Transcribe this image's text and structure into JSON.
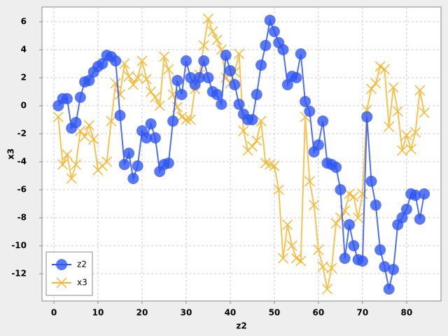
{
  "chart_data": {
    "type": "line",
    "xlabel": "z2",
    "ylabel": "x3",
    "x": [
      1,
      2,
      3,
      4,
      5,
      6,
      7,
      8,
      9,
      10,
      11,
      12,
      13,
      14,
      15,
      16,
      17,
      18,
      19,
      20,
      21,
      22,
      23,
      24,
      25,
      26,
      27,
      28,
      29,
      30,
      31,
      32,
      33,
      34,
      35,
      36,
      37,
      38,
      39,
      40,
      41,
      42,
      43,
      44,
      45,
      46,
      47,
      48,
      49,
      50,
      51,
      52,
      53,
      54,
      55,
      56,
      57,
      58,
      59,
      60,
      61,
      62,
      63,
      64,
      65,
      66,
      67,
      68,
      69,
      70,
      71,
      72,
      73,
      74,
      75,
      76,
      77,
      78,
      79,
      80,
      81,
      82,
      83,
      84
    ],
    "series": [
      {
        "name": "z2",
        "color": "#2f56f0",
        "marker": "circle",
        "values": [
          0,
          0.5,
          0.5,
          -1.6,
          -1.2,
          0.6,
          1.7,
          1.8,
          2.4,
          2.8,
          3.0,
          3.6,
          3.5,
          3.2,
          -0.7,
          -4.2,
          -3.4,
          -5.2,
          -4.3,
          -1.8,
          -2.3,
          -1.3,
          -2.3,
          -4.7,
          -4.2,
          -4.1,
          -1.1,
          1.8,
          0.8,
          3.2,
          2.0,
          1.5,
          2.0,
          3.2,
          2.0,
          1.0,
          0.8,
          0.1,
          3.6,
          2.5,
          1.5,
          0.1,
          -0.6,
          -1.0,
          -1.0,
          0.8,
          2.9,
          4.3,
          6.1,
          5.3,
          4.5,
          4.0,
          1.5,
          2.1,
          2.0,
          3.7,
          0.3,
          -0.4,
          -3.3,
          -2.8,
          -1.1,
          -4.1,
          -4.2,
          -4.4,
          -6.0,
          -10.9,
          -8.5,
          -10.0,
          -11.0,
          -11.1,
          -0.8,
          -5.4,
          -7.1,
          -10.3,
          -11.5,
          -13.1,
          -11.7,
          -8.5,
          -8.0,
          -7.4,
          -6.3,
          -6.4,
          -8.1,
          -6.3
        ]
      },
      {
        "name": "x3",
        "color": "#f7b733",
        "marker": "x",
        "values": [
          -0.8,
          -4.2,
          -3.5,
          -5.2,
          -4.2,
          -1.8,
          -2.2,
          -1.4,
          -2.4,
          -4.6,
          -4.3,
          -4.0,
          -1.1,
          1.6,
          0.8,
          3.0,
          2.1,
          1.5,
          2.0,
          3.2,
          1.9,
          1.0,
          0.6,
          0.0,
          3.5,
          2.6,
          0.8,
          -0.1,
          -0.8,
          -1.0,
          -1.0,
          1.2,
          2.2,
          4.3,
          6.2,
          5.3,
          4.7,
          4.0,
          2.0,
          1.6,
          2.4,
          3.7,
          -1.8,
          -3.2,
          -2.9,
          -2.5,
          -1.1,
          -4.1,
          -4.2,
          -4.3,
          -6.0,
          -10.9,
          -8.5,
          -10.0,
          -10.9,
          -11.1,
          -0.8,
          -5.4,
          -7.1,
          -10.3,
          -11.5,
          -13.1,
          -11.6,
          -8.4,
          -8.0,
          -7.5,
          -6.3,
          -6.5,
          -8.0,
          -6.3,
          -0.3,
          1.2,
          1.6,
          2.8,
          2.6,
          -1.5,
          1.3,
          -0.4,
          -3.2,
          -2.1,
          -3.1,
          -1.9,
          1.1,
          -0.5
        ]
      }
    ],
    "xlim": [
      -2.7,
      87.8
    ],
    "xticks": [
      0,
      10,
      20,
      30,
      40,
      50,
      60,
      70,
      80
    ],
    "ylim": [
      -13.95,
      7.05
    ],
    "yticks": [
      -12,
      -10,
      -8,
      -6,
      -4,
      -2,
      0,
      2,
      4,
      6
    ],
    "grid": true,
    "legend": "lower left"
  }
}
